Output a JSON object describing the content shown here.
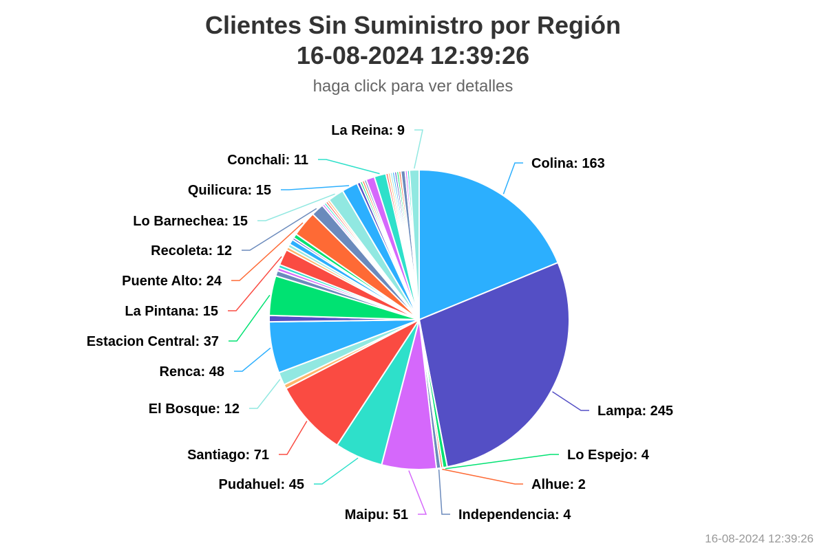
{
  "title_line1": "Clientes Sin Suministro por Región",
  "title_line2": "16-08-2024 12:39:26",
  "subtitle": "haga click para ver detalles",
  "credit": "16-08-2024 12:39:26",
  "chart_data": {
    "type": "pie",
    "title": "Clientes Sin Suministro por Región 16-08-2024 12:39:26",
    "subtitle": "haga click para ver detalles",
    "slices": [
      {
        "name": "Colina",
        "value": 163,
        "color": "#2caffe",
        "label": true
      },
      {
        "name": "Lampa",
        "value": 245,
        "color": "#544fc5",
        "label": true
      },
      {
        "name": "Lo Espejo",
        "value": 4,
        "color": "#00e272",
        "label": true
      },
      {
        "name": "Alhue",
        "value": 2,
        "color": "#fe6a35",
        "label": true
      },
      {
        "name": "Independencia",
        "value": 4,
        "color": "#6b8abc",
        "label": true
      },
      {
        "name": "Maipu",
        "value": 51,
        "color": "#d568fb",
        "label": true
      },
      {
        "name": "Pudahuel",
        "value": 45,
        "color": "#2ee0ca",
        "label": true
      },
      {
        "name": "Santiago",
        "value": 71,
        "color": "#fa4b42",
        "label": true
      },
      {
        "name": "",
        "value": 4,
        "color": "#feb56a",
        "label": false
      },
      {
        "name": "El Bosque",
        "value": 12,
        "color": "#91e8e1",
        "label": true
      },
      {
        "name": "Renca",
        "value": 48,
        "color": "#2caffe",
        "label": true
      },
      {
        "name": "",
        "value": 6,
        "color": "#544fc5",
        "label": false
      },
      {
        "name": "Estacion Central",
        "value": 37,
        "color": "#00e272",
        "label": true
      },
      {
        "name": "",
        "value": 5,
        "color": "#6b8abc",
        "label": false
      },
      {
        "name": "",
        "value": 3,
        "color": "#d568fb",
        "label": false
      },
      {
        "name": "",
        "value": 3,
        "color": "#2ee0ca",
        "label": false
      },
      {
        "name": "La Pintana",
        "value": 15,
        "color": "#fa4b42",
        "label": true
      },
      {
        "name": "",
        "value": 3,
        "color": "#feb56a",
        "label": false
      },
      {
        "name": "",
        "value": 3,
        "color": "#91e8e1",
        "label": false
      },
      {
        "name": "",
        "value": 5,
        "color": "#2caffe",
        "label": false
      },
      {
        "name": "",
        "value": 2,
        "color": "#544fc5",
        "label": false
      },
      {
        "name": "",
        "value": 4,
        "color": "#00e272",
        "label": false
      },
      {
        "name": "Puente Alto",
        "value": 24,
        "color": "#fe6a35",
        "label": true
      },
      {
        "name": "Recoleta",
        "value": 12,
        "color": "#6b8abc",
        "label": true
      },
      {
        "name": "",
        "value": 2,
        "color": "#d568fb",
        "label": false
      },
      {
        "name": "",
        "value": 2,
        "color": "#2ee0ca",
        "label": false
      },
      {
        "name": "",
        "value": 2,
        "color": "#fa4b42",
        "label": false
      },
      {
        "name": "",
        "value": 2,
        "color": "#feb56a",
        "label": false
      },
      {
        "name": "Lo Barnechea",
        "value": 15,
        "color": "#91e8e1",
        "label": true
      },
      {
        "name": "Quilicura",
        "value": 15,
        "color": "#2caffe",
        "label": true
      },
      {
        "name": "",
        "value": 3,
        "color": "#544fc5",
        "label": false
      },
      {
        "name": "",
        "value": 2,
        "color": "#00e272",
        "label": false
      },
      {
        "name": "",
        "value": 2,
        "color": "#fe6a35",
        "label": false
      },
      {
        "name": "",
        "value": 2,
        "color": "#6b8abc",
        "label": false
      },
      {
        "name": "",
        "value": 8,
        "color": "#d568fb",
        "label": false
      },
      {
        "name": "Conchali",
        "value": 11,
        "color": "#2ee0ca",
        "label": true
      },
      {
        "name": "",
        "value": 2,
        "color": "#fa4b42",
        "label": false
      },
      {
        "name": "",
        "value": 2,
        "color": "#feb56a",
        "label": false
      },
      {
        "name": "",
        "value": 2,
        "color": "#91e8e1",
        "label": false
      },
      {
        "name": "",
        "value": 2,
        "color": "#2caffe",
        "label": false
      },
      {
        "name": "",
        "value": 2,
        "color": "#544fc5",
        "label": false
      },
      {
        "name": "",
        "value": 2,
        "color": "#00e272",
        "label": false
      },
      {
        "name": "",
        "value": 2,
        "color": "#fe6a35",
        "label": false
      },
      {
        "name": "",
        "value": 4,
        "color": "#6b8abc",
        "label": false
      },
      {
        "name": "",
        "value": 2,
        "color": "#d568fb",
        "label": false
      },
      {
        "name": "",
        "value": 2,
        "color": "#2ee0ca",
        "label": false
      },
      {
        "name": "La Reina",
        "value": 9,
        "color": "#91e8e1",
        "label": true
      }
    ]
  }
}
